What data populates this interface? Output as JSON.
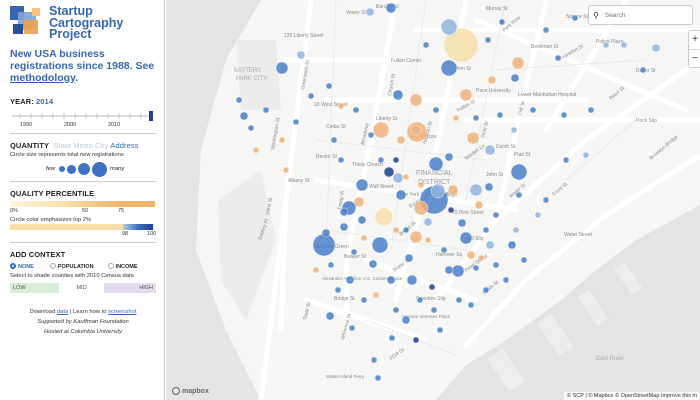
{
  "sidebar": {
    "title_lines": [
      "Startup",
      "Cartography",
      "Project"
    ],
    "tagline": "New USA business registrations since 1988. See ",
    "tagline_link": "methodology",
    "tagline_end": ".",
    "year": {
      "label": "YEAR:",
      "value": "2014",
      "ticks": [
        "1990",
        "2000",
        "2010"
      ]
    },
    "quantity": {
      "label": "QUANTITY",
      "options": [
        "State",
        "Metro",
        "City",
        "Address"
      ],
      "active_option": "Address",
      "description": "Circle size represents total new registrations",
      "few_label": "few",
      "many_label": "many"
    },
    "quality": {
      "label": "QUALITY PERCENTILE",
      "ticks_top": [
        "0%",
        "50",
        "75"
      ],
      "description": "Circle color emphasizes top 2%",
      "ticks_bottom": [
        "98",
        "100"
      ]
    },
    "context": {
      "label": "ADD CONTEXT",
      "options": [
        "NONE",
        "POPULATION",
        "INCOME"
      ],
      "selected": "NONE",
      "description": "Select to shade counties with 2010 Census data",
      "shades": [
        "LOW",
        "MID",
        "HIGH"
      ]
    },
    "footer": {
      "download_pre": "Download ",
      "download_link": "data",
      "learn_pre": " | Learn how to ",
      "learn_link": "screenshot",
      "supported": "Supported by Kauffman Foundation",
      "hosted": "Hosted at Columbia University"
    }
  },
  "map": {
    "search_placeholder": "Search",
    "zoom_in": "+",
    "zoom_out": "−",
    "attribution": "© SCP | © Mapbox © OpenStreetMap  Improve this m",
    "logo": "mapbox",
    "labels": [
      "125 Liberty Street",
      "BATTERY",
      "PARK CITY",
      "10 West Street",
      "Trinity Church",
      "Church St",
      "Broadway",
      "Wall Street",
      "FINANCIAL",
      "DISTRICT",
      "Water St",
      "Front St",
      "Pearl St",
      "Broad St",
      "FDR Dr",
      "Beaver St",
      "Pearl Street",
      "Bridge St",
      "South St",
      "70 Pine Street",
      "Frankfort St",
      "Police Plaza",
      "Lower Manhattan Hospital",
      "Park Row",
      "Nassau St",
      "Fulton St",
      "Gold St",
      "Cliff St",
      "Maiden Ln",
      "Exchange Pl",
      "Stone St",
      "Whitehall St",
      "State St",
      "Battery Pl",
      "Alexander Hamilton U.S. Custom House",
      "Bowling Green",
      "Vietnam Veterans Plaza",
      "Staten Island Ferry",
      "Brooklyn Bridge",
      "Liberty St",
      "Cedar St",
      "Pine St",
      "Vesey St",
      "Barclay St",
      "Murray St",
      "Washington St",
      "Greenwich St",
      "Trinity Pl",
      "Rector St",
      "Albany St",
      "West St",
      "Spruce St",
      "Beekman St",
      "Ann St",
      "John St",
      "Platt St",
      "Dover St",
      "Peck Slip",
      "Dutch St",
      "Coenties Slip",
      "Hanover Sq",
      "Old Slip",
      "Water Street",
      "East River",
      "Joe's Pizza",
      "Fulton Center",
      "Pace University",
      "New York Stock Exchange"
    ],
    "colors": {
      "blue": "#4a7fc8",
      "lightblue": "#8fb4df",
      "orange": "#efb27a",
      "cream": "#f5dfa9",
      "navy": "#1f3f8f"
    }
  }
}
